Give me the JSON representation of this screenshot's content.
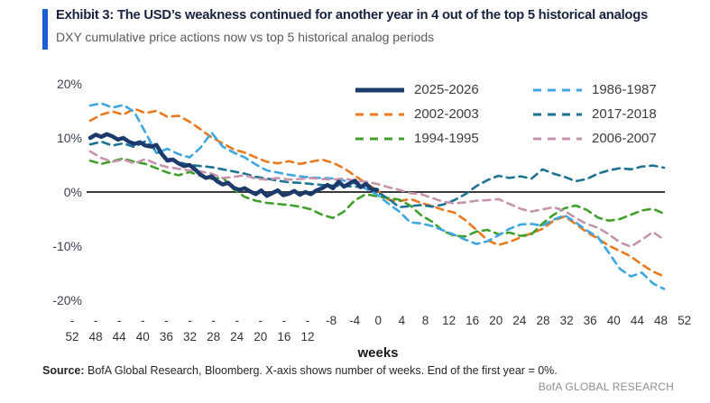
{
  "header": {
    "title": "Exhibit 3: The USD’s weakness continued for another year in 4 out of the top 5 historical analogs",
    "subtitle": "DXY cumulative price actions now vs top 5 historical analog periods"
  },
  "footer": {
    "source_label": "Source:",
    "source_text": " BofA Global Research, Bloomberg. X-axis shows number of weeks. End of the first year = 0%.",
    "brand": "BofA GLOBAL RESEARCH"
  },
  "chart_data": {
    "type": "line",
    "title": "DXY cumulative price actions now vs top 5 historical analog periods",
    "xlabel": "weeks",
    "ylabel": "",
    "x_range_weeks": [
      -52,
      52
    ],
    "ylim": [
      -20,
      20
    ],
    "grid": false,
    "legend_position": "top-right, two columns",
    "colors": {
      "axis": "#3a3a3a",
      "tick_text": "#333333",
      "accent_bar": "#1a5ed6"
    },
    "y_ticks": [
      {
        "v": 20,
        "label": "20%"
      },
      {
        "v": 10,
        "label": "10%"
      },
      {
        "v": 0,
        "label": "0%"
      },
      {
        "v": -10,
        "label": "-10%"
      },
      {
        "v": -20,
        "label": "-20%"
      }
    ],
    "x_ticks": [
      {
        "l1": "-",
        "l2": "52"
      },
      {
        "l1": "-",
        "l2": "48"
      },
      {
        "l1": "-",
        "l2": "44"
      },
      {
        "l1": "-",
        "l2": "40"
      },
      {
        "l1": "-",
        "l2": "36"
      },
      {
        "l1": "-",
        "l2": "32"
      },
      {
        "l1": "-",
        "l2": "28"
      },
      {
        "l1": "-",
        "l2": "24"
      },
      {
        "l1": "-",
        "l2": "20"
      },
      {
        "l1": "-",
        "l2": "16"
      },
      {
        "l1": "-",
        "l2": "12"
      },
      {
        "l1": "-8",
        "l2": ""
      },
      {
        "l1": "-4",
        "l2": ""
      },
      {
        "l1": "0",
        "l2": ""
      },
      {
        "l1": "4",
        "l2": ""
      },
      {
        "l1": "8",
        "l2": ""
      },
      {
        "l1": "12",
        "l2": ""
      },
      {
        "l1": "16",
        "l2": ""
      },
      {
        "l1": "20",
        "l2": ""
      },
      {
        "l1": "24",
        "l2": ""
      },
      {
        "l1": "28",
        "l2": ""
      },
      {
        "l1": "32",
        "l2": ""
      },
      {
        "l1": "36",
        "l2": ""
      },
      {
        "l1": "40",
        "l2": ""
      },
      {
        "l1": "44",
        "l2": ""
      },
      {
        "l1": "48",
        "l2": ""
      },
      {
        "l1": "52",
        "l2": ""
      }
    ],
    "series": [
      {
        "name": "2025-2026",
        "color": "#1c3a6b",
        "line_width": 4.5,
        "dash": "",
        "w0": -52,
        "step": 1,
        "values": [
          10.0,
          10.6,
          10.2,
          10.7,
          10.3,
          9.7,
          10.0,
          9.3,
          8.9,
          9.2,
          8.6,
          8.4,
          8.7,
          7.0,
          5.8,
          6.0,
          5.3,
          4.8,
          5.0,
          4.2,
          3.2,
          2.6,
          2.9,
          2.0,
          1.4,
          1.7,
          0.8,
          0.4,
          0.7,
          0.1,
          -0.4,
          0.3,
          -0.7,
          -0.2,
          0.3,
          -0.6,
          -0.3,
          0.2,
          -0.5,
          0.0,
          -0.4,
          0.3,
          0.7,
          1.3,
          0.7,
          1.9,
          1.0,
          1.6,
          2.1,
          0.9,
          1.5,
          0.5,
          0.4
        ]
      },
      {
        "name": "2002-2003",
        "color": "#e8791f",
        "line_width": 2.6,
        "dash": "8 6",
        "w0": -52,
        "step": 2,
        "values": [
          13.2,
          14.3,
          14.9,
          14.3,
          15.4,
          14.6,
          15.0,
          13.9,
          14.1,
          13.0,
          11.6,
          10.1,
          9.0,
          7.9,
          7.3,
          6.4,
          5.6,
          5.3,
          5.7,
          5.2,
          5.6,
          6.0,
          5.4,
          4.4,
          3.0,
          1.6,
          0.3,
          -1.4,
          -1.7,
          -1.3,
          -2.0,
          -2.6,
          -3.3,
          -3.8,
          -5.2,
          -7.0,
          -8.9,
          -9.8,
          -9.2,
          -8.4,
          -7.6,
          -6.8,
          -5.3,
          -4.5,
          -5.9,
          -7.4,
          -8.6,
          -9.9,
          -10.9,
          -11.9,
          -13.4,
          -14.7,
          -15.6
        ]
      },
      {
        "name": "1994-1995",
        "color": "#3fa02c",
        "line_width": 2.6,
        "dash": "8 6",
        "w0": -52,
        "step": 2,
        "values": [
          5.8,
          5.2,
          5.7,
          6.2,
          5.6,
          5.2,
          4.4,
          3.6,
          3.1,
          3.7,
          3.0,
          2.4,
          2.7,
          0.5,
          -0.9,
          -1.6,
          -2.0,
          -2.2,
          -2.4,
          -2.7,
          -3.2,
          -4.2,
          -4.8,
          -3.6,
          -1.5,
          -0.4,
          -0.8,
          -1.1,
          -1.4,
          -2.5,
          -4.3,
          -5.5,
          -7.2,
          -8.1,
          -8.2,
          -7.3,
          -7.0,
          -7.8,
          -7.5,
          -8.1,
          -7.8,
          -5.8,
          -4.2,
          -3.0,
          -2.5,
          -3.3,
          -4.7,
          -5.3,
          -5.0,
          -4.2,
          -3.4,
          -3.1,
          -4.0
        ]
      },
      {
        "name": "1986-1987",
        "color": "#3ea6e0",
        "line_width": 2.6,
        "dash": "8 6",
        "w0": -52,
        "step": 2,
        "values": [
          16.0,
          16.4,
          15.6,
          16.1,
          14.8,
          11.0,
          7.2,
          8.0,
          7.0,
          6.4,
          8.2,
          11.0,
          8.4,
          7.3,
          6.4,
          5.1,
          4.0,
          3.6,
          3.2,
          2.9,
          2.7,
          2.6,
          2.5,
          2.1,
          1.6,
          0.6,
          -0.5,
          -2.1,
          -3.6,
          -5.6,
          -5.8,
          -6.3,
          -7.1,
          -7.9,
          -8.8,
          -9.6,
          -9.1,
          -8.0,
          -6.8,
          -6.0,
          -5.9,
          -6.2,
          -5.1,
          -4.3,
          -5.6,
          -7.1,
          -8.3,
          -11.2,
          -14.2,
          -15.6,
          -14.9,
          -16.9,
          -17.9
        ]
      },
      {
        "name": "2017-2018",
        "color": "#1e7292",
        "line_width": 2.6,
        "dash": "8 6",
        "w0": -52,
        "step": 2,
        "values": [
          8.8,
          9.3,
          8.6,
          9.0,
          8.3,
          9.4,
          7.6,
          6.3,
          5.5,
          5.0,
          4.8,
          4.6,
          4.2,
          3.8,
          3.4,
          2.8,
          2.5,
          2.1,
          1.8,
          1.7,
          1.5,
          1.3,
          1.2,
          1.1,
          1.0,
          0.8,
          0.0,
          -1.2,
          -2.8,
          -2.6,
          -2.4,
          -2.7,
          -2.3,
          -1.5,
          -0.4,
          1.1,
          2.2,
          3.0,
          2.6,
          2.9,
          2.5,
          4.2,
          3.4,
          2.8,
          2.0,
          2.4,
          3.4,
          4.0,
          4.4,
          4.2,
          4.7,
          4.9,
          4.5
        ]
      },
      {
        "name": "2006-2007",
        "color": "#c494ac",
        "line_width": 2.6,
        "dash": "8 6",
        "w0": -52,
        "step": 2,
        "values": [
          7.5,
          6.3,
          5.6,
          6.0,
          5.3,
          6.1,
          5.2,
          4.6,
          4.3,
          4.0,
          3.8,
          3.4,
          2.6,
          2.8,
          3.1,
          2.5,
          2.3,
          2.6,
          2.3,
          2.4,
          2.6,
          2.4,
          2.3,
          2.5,
          2.1,
          1.9,
          1.5,
          0.9,
          0.4,
          -0.2,
          -0.4,
          -1.1,
          -1.8,
          -2.1,
          -1.9,
          -1.6,
          -1.5,
          -1.3,
          -2.2,
          -3.1,
          -3.6,
          -3.2,
          -2.8,
          -3.5,
          -4.8,
          -5.9,
          -6.6,
          -7.8,
          -9.3,
          -10.1,
          -8.8,
          -7.4,
          -8.8
        ]
      }
    ]
  }
}
